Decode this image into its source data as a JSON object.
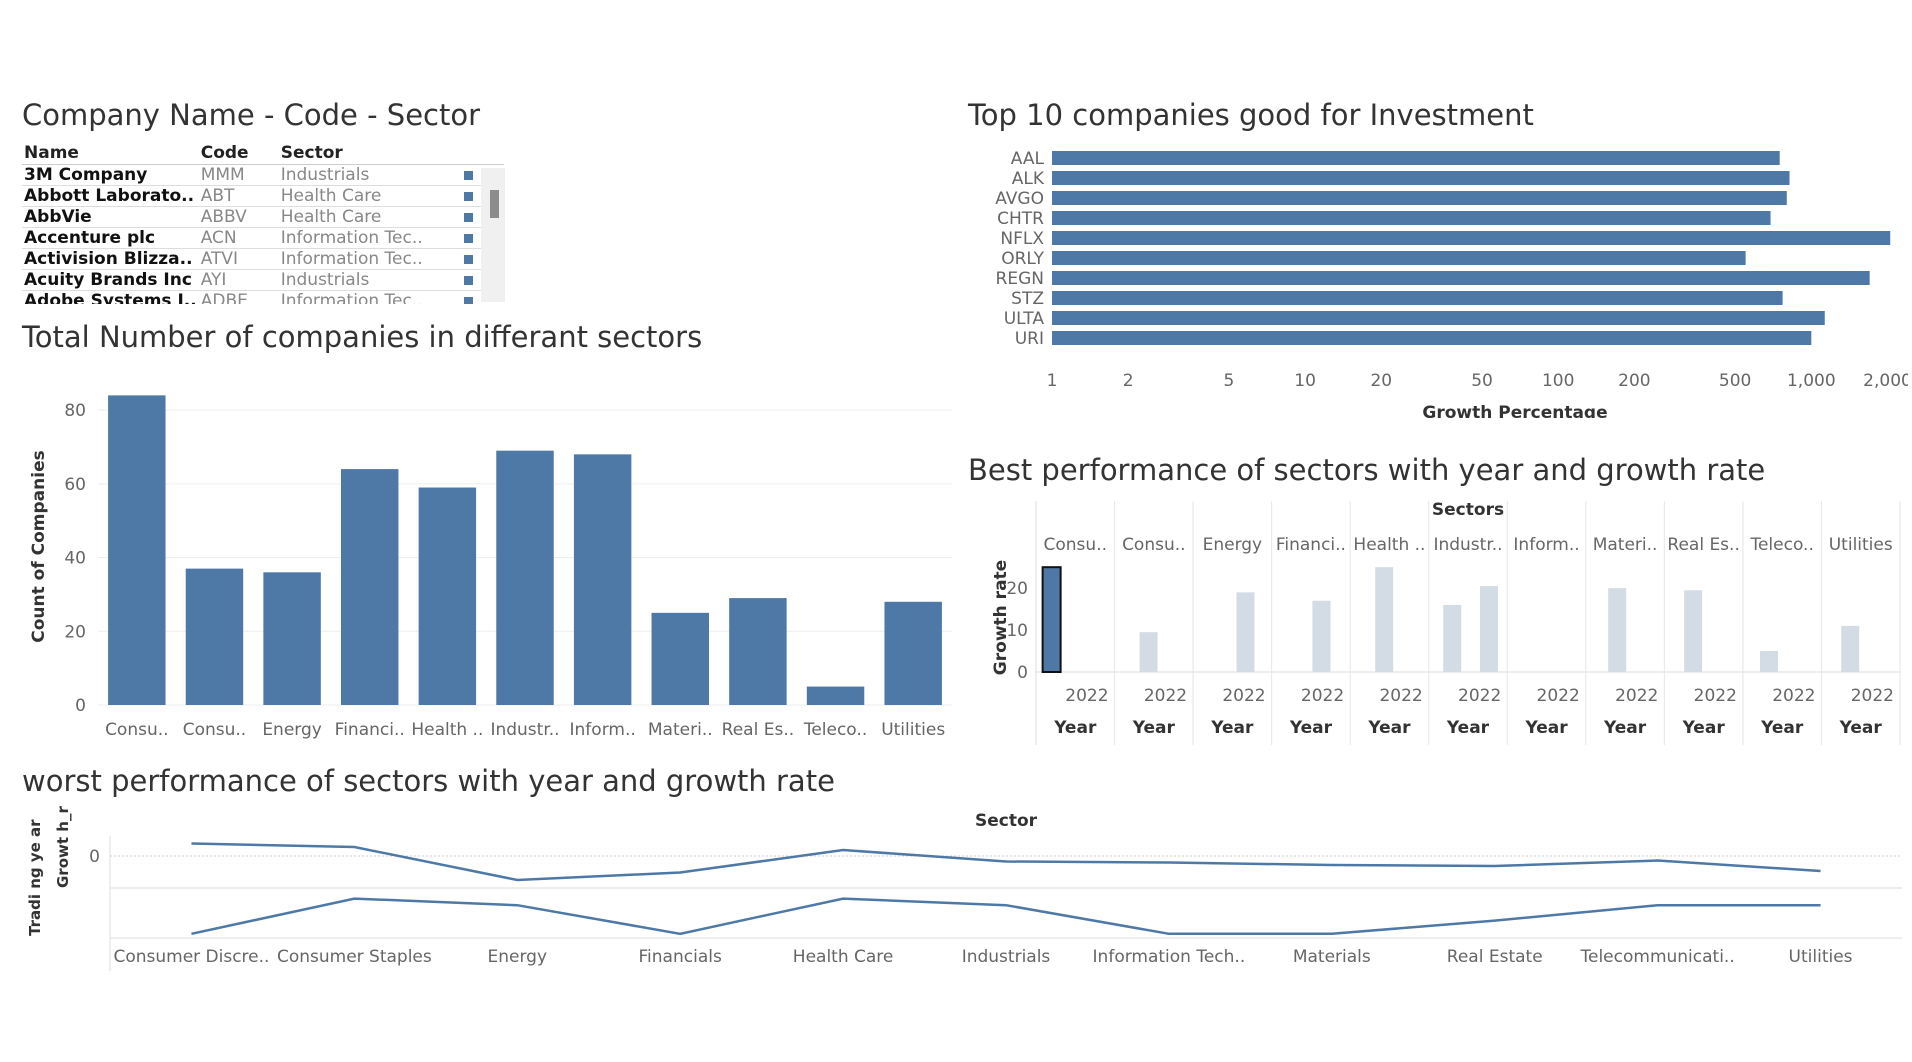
{
  "titles": {
    "table": "Company Name - Code - Sector",
    "top10": "Top 10 companies good for Investment",
    "sector_count": "Total Number of companies in differant sectors",
    "best": "Best performance of sectors with year and growth rate",
    "worst": "worst performance of sectors with year and growth rate"
  },
  "table": {
    "headers": [
      "Name",
      "Code",
      "Sector"
    ],
    "rows": [
      [
        "3M Company",
        "MMM",
        "Industrials"
      ],
      [
        "Abbott Laborato..",
        "ABT",
        "Health Care"
      ],
      [
        "AbbVie",
        "ABBV",
        "Health Care"
      ],
      [
        "Accenture plc",
        "ACN",
        "Information Tec.."
      ],
      [
        "Activision Blizza..",
        "ATVI",
        "Information Tec.."
      ],
      [
        "Acuity Brands Inc",
        "AYI",
        "Industrials"
      ],
      [
        "Adobe Systems I..",
        "ADBE",
        "Information Tec.."
      ]
    ]
  },
  "colors": {
    "bar": "#4e79a7",
    "faded": "#d3dbe5",
    "grid": "#eeeeee"
  },
  "chart_data": [
    {
      "type": "bar",
      "orientation": "horizontal",
      "title": "Top 10 companies good for Investment",
      "categories": [
        "AAL",
        "ALK",
        "AVGO",
        "CHTR",
        "NFLX",
        "ORLY",
        "REGN",
        "STZ",
        "ULTA",
        "URI"
      ],
      "values": [
        750,
        820,
        800,
        690,
        2050,
        550,
        1700,
        770,
        1130,
        1000
      ],
      "xlabel": "Growth Percentage",
      "xscale": "log",
      "xlim": [
        1,
        2200
      ],
      "ticks": [
        "1",
        "2",
        "5",
        "10",
        "20",
        "50",
        "100",
        "200",
        "500",
        "1,000",
        "2,000"
      ],
      "tick_values": [
        1,
        2,
        5,
        10,
        20,
        50,
        100,
        200,
        500,
        1000,
        2000
      ]
    },
    {
      "type": "bar",
      "title": "Total Number of companies in differant sectors",
      "categories": [
        "Consu..",
        "Consu..",
        "Energy",
        "Financi..",
        "Health ..",
        "Industr..",
        "Inform..",
        "Materi..",
        "Real Es..",
        "Teleco..",
        "Utilities"
      ],
      "values": [
        84,
        37,
        36,
        64,
        59,
        69,
        68,
        25,
        29,
        5,
        28
      ],
      "ylabel": "Count of Companies",
      "ylim": [
        0,
        86
      ],
      "yticks": [
        0,
        20,
        40,
        60,
        80
      ]
    },
    {
      "type": "bar",
      "title": "Best performance of sectors with year and growth rate",
      "header": "Sectors",
      "categories": [
        "Consu..",
        "Consu..",
        "Energy",
        "Financi..",
        "Health ..",
        "Industr..",
        "Inform..",
        "Materi..",
        "Real Es..",
        "Teleco..",
        "Utilities"
      ],
      "year_label": "2022",
      "year_axis_label": "Year",
      "ylabel": "Growth rate",
      "ylim": [
        0,
        26
      ],
      "yticks": [
        0,
        10,
        20
      ],
      "bars": [
        [
          {
            "offset": 0.05,
            "value": 25,
            "highlight": true
          }
        ],
        [
          {
            "offset": 0.4,
            "value": 9.5
          }
        ],
        [
          {
            "offset": 0.75,
            "value": 19
          }
        ],
        [
          {
            "offset": 0.7,
            "value": 17
          }
        ],
        [
          {
            "offset": 0.4,
            "value": 25
          }
        ],
        [
          {
            "offset": 0.9,
            "value": 20.5
          },
          {
            "offset": 0.2,
            "value": 16
          }
        ],
        [],
        [
          {
            "offset": 0.35,
            "value": 20
          }
        ],
        [
          {
            "offset": 0.3,
            "value": 19.5
          }
        ],
        [
          {
            "offset": 0.25,
            "value": 5
          }
        ],
        [
          {
            "offset": 0.3,
            "value": 11
          }
        ]
      ]
    },
    {
      "type": "line",
      "title": "worst performance of sectors with year and growth rate",
      "header": "Sector",
      "categories": [
        "Consumer Discre..",
        "Consumer Staples",
        "Energy",
        "Financials",
        "Health Care",
        "Industrials",
        "Information Tech..",
        "Materials",
        "Real Estate",
        "Telecommunicati..",
        "Utilities"
      ],
      "ylabels": [
        "Growt h_ra..",
        "Tradi ng ye ar"
      ],
      "panel1": {
        "ytick": "0",
        "values": [
          2.5,
          1.8,
          -4.8,
          -3.3,
          1.2,
          -1.1,
          -1.3,
          -1.8,
          -2.0,
          -0.9,
          -3.0
        ]
      },
      "panel2": {
        "values": [
          0.05,
          0.85,
          0.7,
          0.05,
          0.85,
          0.7,
          0.05,
          0.05,
          0.35,
          0.7,
          0.7
        ]
      }
    }
  ]
}
